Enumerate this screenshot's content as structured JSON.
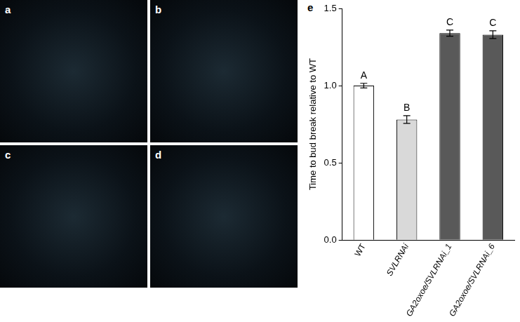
{
  "panels": [
    {
      "label": "a"
    },
    {
      "label": "b"
    },
    {
      "label": "c"
    },
    {
      "label": "d"
    }
  ],
  "chart_data": {
    "type": "bar",
    "panel_label": "e",
    "y_label": "Time to bud break relative to WT",
    "categories": [
      "WT",
      "SVLRNAi",
      "GA2oxoe/SVLRNAi_1",
      "GA2oxoe/SVLRNAi_6"
    ],
    "values": [
      1.0,
      0.78,
      1.34,
      1.33
    ],
    "errors": [
      0.015,
      0.025,
      0.02,
      0.025
    ],
    "significance": [
      "A",
      "B",
      "C",
      "C"
    ],
    "colors": [
      "#ffffff",
      "#d9d9d9",
      "#595959",
      "#595959"
    ],
    "ylim": [
      0,
      1.5
    ],
    "yticks": [
      {
        "value": 0,
        "label": "0.0"
      },
      {
        "value": 0.5,
        "label": "0.5"
      },
      {
        "value": 1.0,
        "label": "1.0"
      },
      {
        "value": 1.5,
        "label": "1.5"
      }
    ],
    "grid": false
  }
}
